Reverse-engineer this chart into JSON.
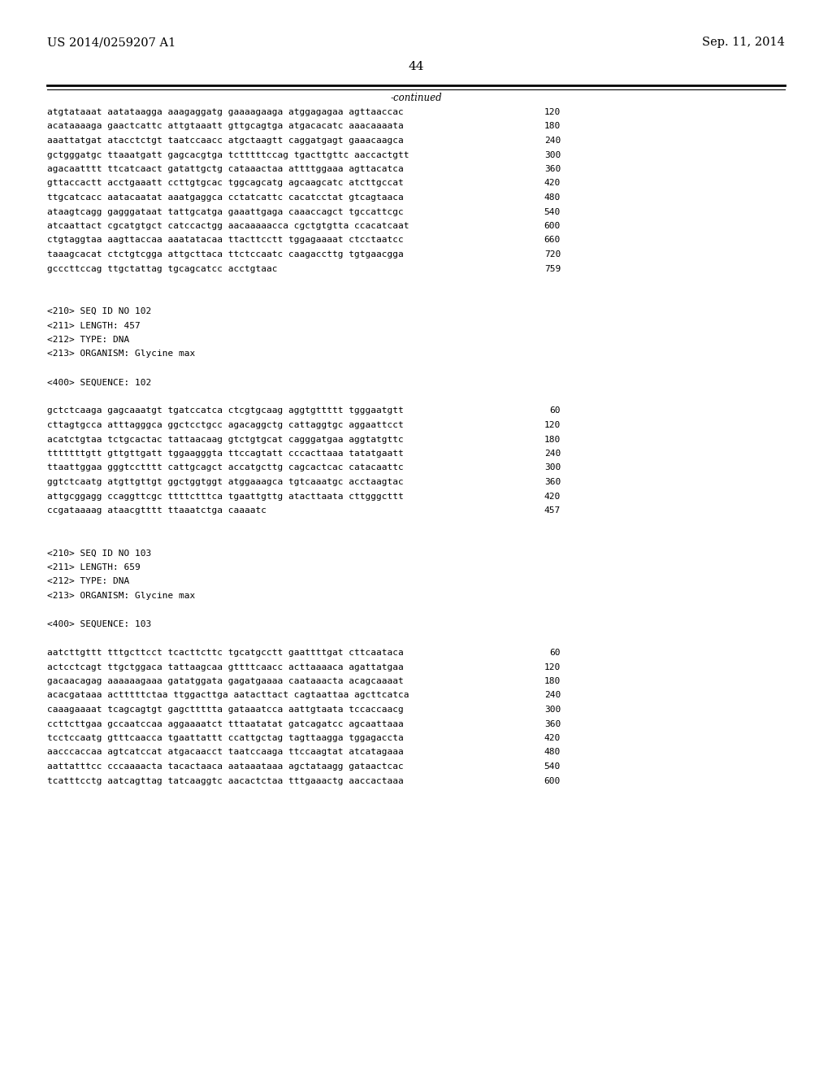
{
  "header_left": "US 2014/0259207 A1",
  "header_right": "Sep. 11, 2014",
  "page_number": "44",
  "continued_text": "-continued",
  "background_color": "#ffffff",
  "text_color": "#000000",
  "font_size_header": 10.5,
  "font_size_body": 8.0,
  "font_size_page": 11,
  "lines": [
    {
      "text": "atgtataaat aatataagga aaagaggatg gaaaagaaga atggagagaa agttaaccac",
      "num": "120"
    },
    {
      "text": "acataaaaga gaactcattc attgtaaatt gttgcagtga atgacacatc aaacaaaata",
      "num": "180"
    },
    {
      "text": "aaattatgat atacctctgt taatccaacc atgctaagtt caggatgagt gaaacaagca",
      "num": "240"
    },
    {
      "text": "gctgggatgc ttaaatgatt gagcacgtga tctttttccag tgacttgttc aaccactgtt",
      "num": "300"
    },
    {
      "text": "agacaatttt ttcatcaact gatattgctg cataaactaa attttggaaa agttacatca",
      "num": "360"
    },
    {
      "text": "gttaccactt acctgaaatt ccttgtgcac tggcagcatg agcaagcatc atcttgccat",
      "num": "420"
    },
    {
      "text": "ttgcatcacc aatacaatat aaatgaggca cctatcattc cacatcctat gtcagtaaca",
      "num": "480"
    },
    {
      "text": "ataagtcagg gagggataat tattgcatga gaaattgaga caaaccagct tgccattcgc",
      "num": "540"
    },
    {
      "text": "atcaattact cgcatgtgct catccactgg aacaaaaacca cgctgtgtta ccacatcaat",
      "num": "600"
    },
    {
      "text": "ctgtaggtaa aagttaccaa aaatatacaa ttacttcctt tggagaaaat ctcctaatcc",
      "num": "660"
    },
    {
      "text": "taaagcacat ctctgtcgga attgcttaca ttctccaatc caagaccttg tgtgaacgga",
      "num": "720"
    },
    {
      "text": "gcccttccag ttgctattag tgcagcatcc acctgtaac",
      "num": "759"
    },
    {
      "text": "",
      "num": ""
    },
    {
      "text": "",
      "num": ""
    },
    {
      "text": "<210> SEQ ID NO 102",
      "num": ""
    },
    {
      "text": "<211> LENGTH: 457",
      "num": ""
    },
    {
      "text": "<212> TYPE: DNA",
      "num": ""
    },
    {
      "text": "<213> ORGANISM: Glycine max",
      "num": ""
    },
    {
      "text": "",
      "num": ""
    },
    {
      "text": "<400> SEQUENCE: 102",
      "num": ""
    },
    {
      "text": "",
      "num": ""
    },
    {
      "text": "gctctcaaga gagcaaatgt tgatccatca ctcgtgcaag aggtgttttt tgggaatgtt",
      "num": "60"
    },
    {
      "text": "cttagtgcca atttagggca ggctcctgcc agacaggctg cattaggtgc aggaattcct",
      "num": "120"
    },
    {
      "text": "acatctgtaa tctgcactac tattaacaag gtctgtgcat cagggatgaa aggtatgttc",
      "num": "180"
    },
    {
      "text": "tttttttgtt gttgttgatt tggaagggta ttccagtatt cccacttaaa tatatgaatt",
      "num": "240"
    },
    {
      "text": "ttaattggaa gggtcctttt cattgcagct accatgcttg cagcactcac catacaattc",
      "num": "300"
    },
    {
      "text": "ggtctcaatg atgttgttgt ggctggtggt atggaaagca tgtcaaatgc acctaagtac",
      "num": "360"
    },
    {
      "text": "attgcggagg ccaggttcgc ttttctttca tgaattgttg atacttaata cttgggcttt",
      "num": "420"
    },
    {
      "text": "ccgataaaag ataacgtttt ttaaatctga caaaatc",
      "num": "457"
    },
    {
      "text": "",
      "num": ""
    },
    {
      "text": "",
      "num": ""
    },
    {
      "text": "<210> SEQ ID NO 103",
      "num": ""
    },
    {
      "text": "<211> LENGTH: 659",
      "num": ""
    },
    {
      "text": "<212> TYPE: DNA",
      "num": ""
    },
    {
      "text": "<213> ORGANISM: Glycine max",
      "num": ""
    },
    {
      "text": "",
      "num": ""
    },
    {
      "text": "<400> SEQUENCE: 103",
      "num": ""
    },
    {
      "text": "",
      "num": ""
    },
    {
      "text": "aatcttgttt tttgcttcct tcacttcttc tgcatgcctt gaattttgat cttcaataca",
      "num": "60"
    },
    {
      "text": "actcctcagt ttgctggaca tattaagcaa gttttcaacc acttaaaaca agattatgaa",
      "num": "120"
    },
    {
      "text": "gacaacagag aaaaaagaaa gatatggata gagatgaaaa caataaacta acagcaaaat",
      "num": "180"
    },
    {
      "text": "acacgataaa actttttctaa ttggacttga aatacttact cagtaattaa agcttcatca",
      "num": "240"
    },
    {
      "text": "caaagaaaat tcagcagtgt gagcttttta gataaatcca aattgtaata tccaccaacg",
      "num": "300"
    },
    {
      "text": "ccttcttgaa gccaatccaa aggaaaatct tttaatatat gatcagatcc agcaattaaa",
      "num": "360"
    },
    {
      "text": "tcctccaatg gtttcaacca tgaattattt ccattgctag tagttaagga tggagaccta",
      "num": "420"
    },
    {
      "text": "aacccaccaa agtcatccat atgacaacct taatccaaga ttccaagtat atcatagaaa",
      "num": "480"
    },
    {
      "text": "aattatttcc cccaaaacta tacactaaca aataaataaa agctataagg gataactcac",
      "num": "540"
    },
    {
      "text": "tcatttcctg aatcagttag tatcaaggtc aacactctaa tttgaaactg aaccactaaa",
      "num": "600"
    }
  ]
}
